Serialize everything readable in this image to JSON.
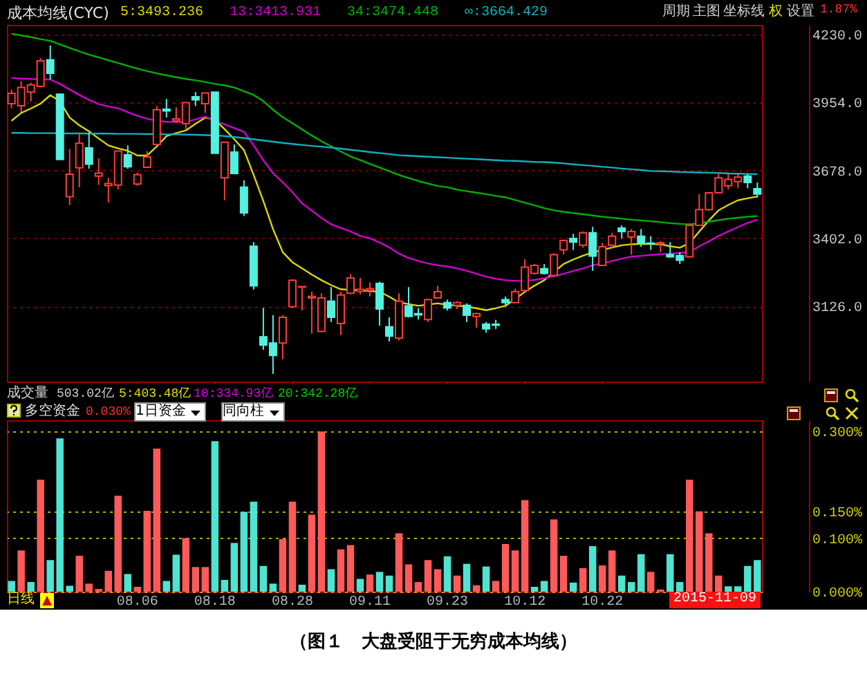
{
  "chart_data": [
    {
      "type": "candlestick",
      "title": "成本均线(CYC)",
      "categories": [
        null,
        null,
        null,
        null,
        null,
        null,
        null,
        null,
        null,
        null,
        null,
        null,
        null,
        "08.06",
        null,
        null,
        null,
        null,
        null,
        null,
        null,
        "08.18",
        null,
        null,
        null,
        null,
        null,
        null,
        null,
        "08.28",
        null,
        null,
        null,
        null,
        null,
        null,
        null,
        "09.11",
        null,
        null,
        null,
        null,
        null,
        null,
        null,
        "09.23",
        null,
        null,
        null,
        null,
        null,
        null,
        null,
        "10.12",
        null,
        null,
        null,
        null,
        null,
        null,
        null,
        "10.22",
        null,
        null,
        null,
        null,
        null,
        null,
        null,
        null,
        null,
        null,
        null,
        null,
        null,
        null,
        null,
        null
      ],
      "ohlc": [
        [
          3950,
          4007,
          3931,
          3992
        ],
        [
          3941,
          4041,
          3916,
          4016
        ],
        [
          3997,
          4035,
          3959,
          4026
        ],
        [
          4020,
          4135,
          4016,
          4124
        ],
        [
          4128,
          4186,
          4048,
          4073
        ],
        [
          3988,
          3988,
          3723,
          3723
        ],
        [
          3572,
          3765,
          3538,
          3663
        ],
        [
          3689,
          3833,
          3610,
          3789
        ],
        [
          3770,
          3833,
          3685,
          3704
        ],
        [
          3655,
          3727,
          3619,
          3667
        ],
        [
          3617,
          3648,
          3548,
          3625
        ],
        [
          3619,
          3757,
          3600,
          3757
        ],
        [
          3742,
          3780,
          3685,
          3693
        ],
        [
          3623,
          3670,
          3616,
          3661
        ],
        [
          3691,
          3757,
          3689,
          3733
        ],
        [
          3784,
          3940,
          3780,
          3925
        ],
        [
          3927,
          3969,
          3893,
          3920
        ],
        [
          3880,
          3935,
          3871,
          3888
        ],
        [
          3869,
          3954,
          3846,
          3954
        ],
        [
          3978,
          3997,
          3940,
          3965
        ],
        [
          3950,
          3993,
          3912,
          3993
        ],
        [
          3997,
          3997,
          3748,
          3748
        ],
        [
          3648,
          3793,
          3557,
          3793
        ],
        [
          3753,
          3784,
          3663,
          3666
        ],
        [
          3610,
          3638,
          3493,
          3506
        ],
        [
          3370,
          3387,
          3194,
          3209
        ],
        [
          3002,
          3119,
          2949,
          2968
        ],
        [
          2977,
          3090,
          2851,
          2926
        ],
        [
          2977,
          3090,
          2911,
          3081
        ],
        [
          3124,
          3236,
          3119,
          3232
        ],
        [
          3204,
          3206,
          3109,
          3206
        ],
        [
          3160,
          3185,
          3015,
          3166
        ],
        [
          3024,
          3179,
          3020,
          3160
        ],
        [
          3147,
          3204,
          3062,
          3081
        ],
        [
          3056,
          3185,
          3009,
          3172
        ],
        [
          3179,
          3257,
          3175,
          3241
        ],
        [
          3187,
          3241,
          3175,
          3195
        ],
        [
          3191,
          3223,
          3166,
          3198
        ],
        [
          3219,
          3226,
          3047,
          3115
        ],
        [
          3043,
          3081,
          2983,
          3005
        ],
        [
          2996,
          3179,
          2987,
          3147
        ],
        [
          3128,
          3204,
          3081,
          3085
        ],
        [
          3096,
          3119,
          3072,
          3091
        ],
        [
          3072,
          3157,
          3062,
          3153
        ],
        [
          3160,
          3209,
          3157,
          3185
        ],
        [
          3141,
          3153,
          3109,
          3119
        ],
        [
          3130,
          3147,
          3115,
          3141
        ],
        [
          3130,
          3138,
          3062,
          3090
        ],
        [
          3085,
          3100,
          3039,
          3096
        ],
        [
          3053,
          3062,
          3019,
          3034
        ],
        [
          3053,
          3071,
          3034,
          3049
        ],
        [
          3153,
          3166,
          3128,
          3141
        ],
        [
          3141,
          3198,
          3138,
          3185
        ],
        [
          3190,
          3317,
          3185,
          3285
        ],
        [
          3260,
          3298,
          3255,
          3292
        ],
        [
          3279,
          3298,
          3255,
          3260
        ],
        [
          3251,
          3342,
          3247,
          3336
        ],
        [
          3355,
          3398,
          3336,
          3393
        ],
        [
          3402,
          3421,
          3355,
          3387
        ],
        [
          3374,
          3430,
          3364,
          3425
        ],
        [
          3425,
          3449,
          3270,
          3330
        ],
        [
          3292,
          3383,
          3289,
          3368
        ],
        [
          3374,
          3425,
          3364,
          3411
        ],
        [
          3444,
          3455,
          3402,
          3430
        ],
        [
          3408,
          3440,
          3336,
          3430
        ],
        [
          3411,
          3440,
          3368,
          3383
        ],
        [
          3383,
          3411,
          3355,
          3380
        ],
        [
          3380,
          3391,
          3346,
          3384
        ],
        [
          3336,
          3387,
          3323,
          3327
        ],
        [
          3332,
          3346,
          3298,
          3313
        ],
        [
          3327,
          3463,
          3323,
          3455
        ],
        [
          3455,
          3582,
          3455,
          3519
        ],
        [
          3519,
          3591,
          3515,
          3587
        ],
        [
          3587,
          3670,
          3587,
          3648
        ],
        [
          3616,
          3663,
          3601,
          3642
        ],
        [
          3633,
          3663,
          3606,
          3651
        ],
        [
          3655,
          3663,
          3606,
          3629
        ],
        [
          3604,
          3629,
          3568,
          3582
        ]
      ],
      "series": [
        {
          "name": "5:3493.236",
          "type": "line",
          "color": "#d8d800",
          "values": [
            3880,
            3912,
            3930,
            3950,
            3984,
            3960,
            3893,
            3862,
            3837,
            3808,
            3780,
            3768,
            3758,
            3739,
            3739,
            3776,
            3818,
            3830,
            3841,
            3868,
            3893,
            3884,
            3846,
            3805,
            3761,
            3660,
            3554,
            3440,
            3346,
            3305,
            3280,
            3255,
            3232,
            3212,
            3195,
            3193,
            3191,
            3188,
            3185,
            3165,
            3142,
            3135,
            3128,
            3133,
            3138,
            3132,
            3128,
            3125,
            3118,
            3110,
            3118,
            3128,
            3155,
            3185,
            3210,
            3232,
            3265,
            3298,
            3316,
            3332,
            3345,
            3355,
            3365,
            3374,
            3378,
            3380,
            3379,
            3378,
            3370,
            3364,
            3383,
            3430,
            3475,
            3516,
            3538,
            3557,
            3565,
            3572
          ]
        },
        {
          "name": "13:3413.931",
          "type": "line",
          "color": "#d000d0",
          "values": [
            4054,
            4052,
            4050,
            4049,
            4048,
            4030,
            4007,
            3985,
            3965,
            3948,
            3938,
            3931,
            3915,
            3900,
            3888,
            3880,
            3876,
            3875,
            3875,
            3886,
            3897,
            3880,
            3866,
            3850,
            3835,
            3780,
            3720,
            3667,
            3630,
            3590,
            3544,
            3515,
            3485,
            3459,
            3444,
            3430,
            3412,
            3402,
            3385,
            3365,
            3340,
            3322,
            3310,
            3300,
            3293,
            3288,
            3280,
            3270,
            3258,
            3246,
            3238,
            3232,
            3230,
            3229,
            3233,
            3240,
            3248,
            3258,
            3270,
            3280,
            3293,
            3300,
            3310,
            3320,
            3328,
            3331,
            3335,
            3338,
            3340,
            3343,
            3346,
            3370,
            3390,
            3412,
            3430,
            3448,
            3465,
            3478
          ]
        },
        {
          "name": "34:3474.448",
          "type": "line",
          "color": "#00b000",
          "values": [
            4234,
            4227,
            4220,
            4212,
            4205,
            4190,
            4176,
            4162,
            4149,
            4138,
            4126,
            4115,
            4103,
            4092,
            4082,
            4073,
            4065,
            4057,
            4050,
            4045,
            4038,
            4030,
            4024,
            4015,
            4000,
            3985,
            3960,
            3925,
            3895,
            3870,
            3845,
            3820,
            3797,
            3776,
            3755,
            3735,
            3720,
            3705,
            3690,
            3675,
            3660,
            3647,
            3635,
            3625,
            3615,
            3610,
            3600,
            3594,
            3588,
            3582,
            3575,
            3569,
            3558,
            3547,
            3536,
            3525,
            3516,
            3510,
            3505,
            3500,
            3495,
            3490,
            3486,
            3482,
            3478,
            3475,
            3472,
            3468,
            3464,
            3461,
            3459,
            3463,
            3470,
            3476,
            3482,
            3486,
            3490,
            3493
          ]
        },
        {
          "name": "∞:3664.429",
          "type": "line",
          "color": "#10b0c0",
          "values": [
            3831,
            3831,
            3830,
            3830,
            3830,
            3829,
            3829,
            3829,
            3828,
            3828,
            3828,
            3827,
            3827,
            3827,
            3826,
            3826,
            3825,
            3825,
            3824,
            3823,
            3822,
            3821,
            3818,
            3814,
            3810,
            3805,
            3800,
            3795,
            3790,
            3786,
            3782,
            3778,
            3775,
            3771,
            3767,
            3762,
            3758,
            3753,
            3749,
            3745,
            3740,
            3738,
            3736,
            3734,
            3732,
            3730,
            3728,
            3726,
            3724,
            3722,
            3720,
            3718,
            3717,
            3715,
            3713,
            3712,
            3710,
            3707,
            3703,
            3700,
            3697,
            3693,
            3690,
            3686,
            3683,
            3680,
            3676,
            3675,
            3674,
            3672,
            3671,
            3670,
            3669,
            3668,
            3666,
            3665,
            3664,
            3663
          ]
        }
      ],
      "ylim": [
        2820,
        4270
      ],
      "yticks": [
        {
          "value": 4230,
          "label": "4230.0"
        },
        {
          "value": 3954,
          "label": "3954.0"
        },
        {
          "value": 3678,
          "label": "3678.0"
        },
        {
          "value": 3402,
          "label": "3402.0"
        },
        {
          "value": 3126,
          "label": "3126.0"
        }
      ],
      "grid": "y",
      "legend": "top left",
      "tick_labels": "y",
      "annotations": [
        "周期",
        "主图",
        "坐标线",
        "权",
        "设置",
        "1.87%",
        "成交量",
        "503.02亿",
        "5:403.48亿",
        "10:334.93亿",
        "20:342.28亿"
      ]
    },
    {
      "type": "bar",
      "title": "多空资金",
      "categories": [
        null,
        null,
        null,
        null,
        null,
        null,
        null,
        null,
        null,
        null,
        null,
        null,
        null,
        "08.06",
        null,
        null,
        null,
        null,
        null,
        null,
        null,
        "08.18",
        null,
        null,
        null,
        null,
        null,
        null,
        null,
        "08.28",
        null,
        null,
        null,
        null,
        null,
        null,
        null,
        "09.11",
        null,
        null,
        null,
        null,
        null,
        null,
        null,
        "09.23",
        null,
        null,
        null,
        null,
        null,
        null,
        null,
        "10.12",
        null,
        null,
        null,
        null,
        null,
        null,
        null,
        "10.22",
        null,
        null,
        null,
        null,
        null,
        null,
        null,
        null,
        null,
        null,
        null,
        null,
        null,
        null,
        null,
        null
      ],
      "values": [
        0.02,
        0.077,
        0.018,
        0.209,
        0.059,
        0.286,
        0.011,
        0.067,
        0.015,
        0.005,
        0.039,
        0.179,
        0.033,
        0.009,
        0.151,
        0.267,
        0.02,
        0.069,
        0.1,
        0.046,
        0.046,
        0.281,
        0.022,
        0.091,
        0.149,
        0.168,
        0.048,
        0.015,
        0.098,
        0.168,
        0.013,
        0.144,
        0.299,
        0.042,
        0.079,
        0.087,
        0.024,
        0.032,
        0.037,
        0.03,
        0.109,
        0.051,
        0.018,
        0.059,
        0.042,
        0.066,
        0.03,
        0.052,
        0.012,
        0.047,
        0.02,
        0.089,
        0.077,
        0.171,
        0.009,
        0.02,
        0.135,
        0.067,
        0.017,
        0.044,
        0.085,
        0.049,
        0.077,
        0.03,
        0.018,
        0.07,
        0.037,
        0.004,
        0.07,
        0.018,
        0.209,
        0.15,
        0.109,
        0.03,
        0.01,
        0.01,
        0.048,
        0.059
      ],
      "colors": [
        "#4fe3d2",
        "#ff5a5a",
        "#4fe3d2",
        "#ff5a5a",
        "#4fe3d2",
        "#4fe3d2",
        "#4fe3d2",
        "#ff5a5a",
        "#ff5a5a",
        "#ff5a5a",
        "#ff5a5a",
        "#ff5a5a",
        "#4fe3d2",
        "#ff5a5a",
        "#ff5a5a",
        "#ff5a5a",
        "#4fe3d2",
        "#4fe3d2",
        "#ff5a5a",
        "#ff5a5a",
        "#ff5a5a",
        "#4fe3d2",
        "#4fe3d2",
        "#4fe3d2",
        "#4fe3d2",
        "#4fe3d2",
        "#4fe3d2",
        "#4fe3d2",
        "#ff5a5a",
        "#ff5a5a",
        "#4fe3d2",
        "#ff5a5a",
        "#ff5a5a",
        "#4fe3d2",
        "#ff5a5a",
        "#ff5a5a",
        "#4fe3d2",
        "#ff5a5a",
        "#4fe3d2",
        "#4fe3d2",
        "#ff5a5a",
        "#ff5a5a",
        "#ff5a5a",
        "#ff5a5a",
        "#ff5a5a",
        "#4fe3d2",
        "#ff5a5a",
        "#4fe3d2",
        "#ff5a5a",
        "#4fe3d2",
        "#ff5a5a",
        "#ff5a5a",
        "#ff5a5a",
        "#ff5a5a",
        "#4fe3d2",
        "#4fe3d2",
        "#ff5a5a",
        "#ff5a5a",
        "#4fe3d2",
        "#ff5a5a",
        "#4fe3d2",
        "#ff5a5a",
        "#ff5a5a",
        "#4fe3d2",
        "#4fe3d2",
        "#4fe3d2",
        "#ff5a5a",
        "#ff5a5a",
        "#4fe3d2",
        "#4fe3d2",
        "#ff5a5a",
        "#ff5a5a",
        "#ff5a5a",
        "#ff5a5a",
        "#4fe3d2",
        "#4fe3d2",
        "#4fe3d2",
        "#4fe3d2"
      ],
      "ylim": [
        0,
        0.32
      ],
      "yticks": [
        {
          "value": 0.3,
          "label": "0.300%"
        },
        {
          "value": 0.15,
          "label": "0.150%"
        },
        {
          "value": 0.1,
          "label": "0.100%"
        },
        {
          "value": 0,
          "label": "0.000%"
        }
      ],
      "grid": "y",
      "annotations": [
        "0.030%",
        "1日资金",
        "同向柱",
        "日线",
        "2015-11-09",
        "（图１　大盘受阻于无穷成本均线）"
      ]
    }
  ]
}
